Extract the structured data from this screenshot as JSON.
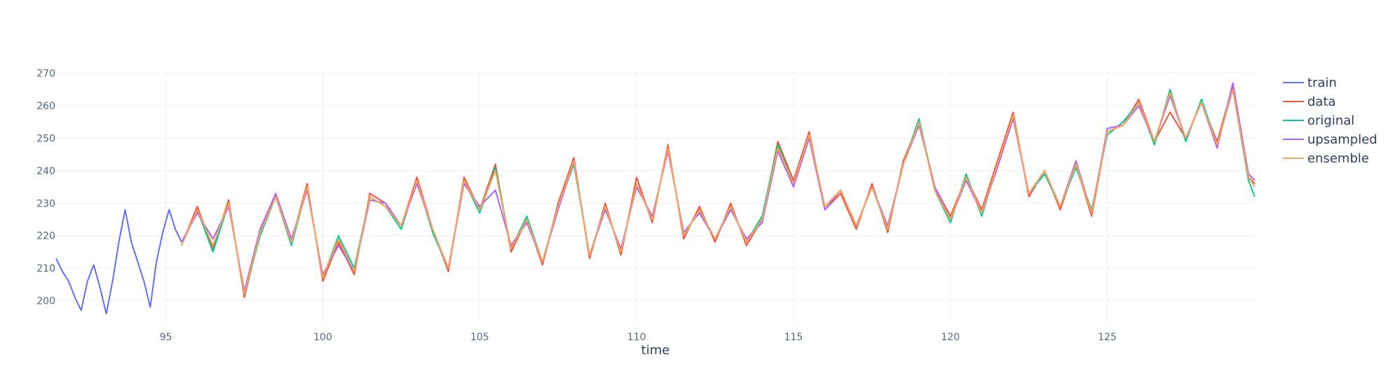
{
  "chart_data": {
    "type": "line",
    "title": "",
    "xlabel": "time",
    "ylabel": "",
    "xlim": [
      91.5,
      129.7
    ],
    "ylim": [
      193,
      271
    ],
    "xticks": [
      95,
      100,
      105,
      110,
      115,
      120,
      125
    ],
    "yticks": [
      200,
      210,
      220,
      230,
      240,
      250,
      260,
      270
    ],
    "grid": true,
    "legend_position": "top-right",
    "series": [
      {
        "name": "train",
        "color": "#636efa",
        "x": [
          91.5,
          91.7,
          91.9,
          92.1,
          92.3,
          92.5,
          92.7,
          92.9,
          93.1,
          93.3,
          93.5,
          93.7,
          93.9,
          94.1,
          94.3,
          94.5,
          94.7,
          94.9,
          95.1,
          95.3,
          95.5
        ],
        "y": [
          213,
          209,
          206,
          201,
          197,
          206,
          211,
          204,
          196,
          206,
          218,
          228,
          218,
          212,
          206,
          198,
          212,
          221,
          228,
          222,
          218
        ]
      },
      {
        "name": "data",
        "color": "#ef553b",
        "x": [
          95.5,
          96.0,
          96.5,
          97.0,
          97.5,
          98.0,
          98.5,
          99.0,
          99.5,
          100.0,
          100.5,
          101.0,
          101.5,
          102.0,
          102.5,
          103.0,
          103.5,
          104.0,
          104.5,
          105.0,
          105.5,
          106.0,
          106.5,
          107.0,
          107.5,
          108.0,
          108.5,
          109.0,
          109.5,
          110.0,
          110.5,
          111.0,
          111.5,
          112.0,
          112.5,
          113.0,
          113.5,
          114.0,
          114.5,
          115.0,
          115.5,
          116.0,
          116.5,
          117.0,
          117.5,
          118.0,
          118.5,
          119.0,
          119.5,
          120.0,
          120.5,
          121.0,
          121.5,
          122.0,
          122.5,
          123.0,
          123.5,
          124.0,
          124.5,
          125.0,
          125.5,
          126.0,
          126.5,
          127.0,
          127.5,
          128.0,
          128.5,
          129.0,
          129.5,
          129.7
        ],
        "y": [
          217,
          229,
          216,
          231,
          201,
          221,
          233,
          218,
          236,
          206,
          218,
          208,
          233,
          230,
          223,
          238,
          222,
          209,
          238,
          228,
          242,
          215,
          225,
          211,
          230,
          244,
          213,
          230,
          214,
          238,
          224,
          248,
          219,
          229,
          218,
          230,
          217,
          225,
          249,
          237,
          252,
          228,
          233,
          222,
          236,
          221,
          243,
          255,
          235,
          226,
          238,
          228,
          243,
          258,
          232,
          240,
          228,
          242,
          226,
          252,
          254,
          262,
          249,
          258,
          250,
          261,
          249,
          266,
          238,
          236
        ]
      },
      {
        "name": "original",
        "color": "#00cc96",
        "x": [
          95.5,
          96.0,
          96.5,
          97.0,
          97.5,
          98.0,
          98.5,
          99.0,
          99.5,
          100.0,
          100.5,
          101.0,
          101.5,
          102.0,
          102.5,
          103.0,
          103.5,
          104.0,
          104.5,
          105.0,
          105.5,
          106.0,
          106.5,
          107.0,
          107.5,
          108.0,
          108.5,
          109.0,
          109.5,
          110.0,
          110.5,
          111.0,
          111.5,
          112.0,
          112.5,
          113.0,
          113.5,
          114.0,
          114.5,
          115.0,
          115.5,
          116.0,
          116.5,
          117.0,
          117.5,
          118.0,
          118.5,
          119.0,
          119.5,
          120.0,
          120.5,
          121.0,
          121.5,
          122.0,
          122.5,
          123.0,
          123.5,
          124.0,
          124.5,
          125.0,
          125.5,
          126.0,
          126.5,
          127.0,
          127.5,
          128.0,
          128.5,
          129.0,
          129.5,
          129.7
        ],
        "y": [
          217,
          228,
          215,
          230,
          202,
          220,
          232,
          217,
          235,
          207,
          220,
          210,
          232,
          229,
          222,
          237,
          221,
          210,
          237,
          227,
          241,
          216,
          226,
          212,
          229,
          242,
          214,
          229,
          215,
          236,
          225,
          247,
          220,
          228,
          219,
          229,
          218,
          226,
          248,
          236,
          251,
          229,
          234,
          223,
          235,
          222,
          242,
          256,
          234,
          224,
          239,
          226,
          242,
          257,
          233,
          239,
          229,
          241,
          228,
          251,
          255,
          261,
          248,
          265,
          249,
          262,
          248,
          265,
          237,
          232
        ]
      },
      {
        "name": "upsampled",
        "color": "#ab63fa",
        "x": [
          95.5,
          96.0,
          96.5,
          97.0,
          97.5,
          98.0,
          98.5,
          99.0,
          99.5,
          100.0,
          100.5,
          101.0,
          101.5,
          102.0,
          102.5,
          103.0,
          103.5,
          104.0,
          104.5,
          105.0,
          105.5,
          106.0,
          106.5,
          107.0,
          107.5,
          108.0,
          108.5,
          109.0,
          109.5,
          110.0,
          110.5,
          111.0,
          111.5,
          112.0,
          112.5,
          113.0,
          113.5,
          114.0,
          114.5,
          115.0,
          115.5,
          116.0,
          116.5,
          117.0,
          117.5,
          118.0,
          118.5,
          119.0,
          119.5,
          120.0,
          120.5,
          121.0,
          121.5,
          122.0,
          122.5,
          123.0,
          123.5,
          124.0,
          124.5,
          125.0,
          125.5,
          126.0,
          126.5,
          127.0,
          127.5,
          128.0,
          128.5,
          129.0,
          129.5,
          129.7
        ],
        "y": [
          218,
          227,
          219,
          229,
          203,
          222,
          233,
          219,
          234,
          208,
          217,
          209,
          231,
          230,
          223,
          236,
          222,
          210,
          236,
          229,
          234,
          217,
          224,
          212,
          228,
          243,
          214,
          228,
          216,
          235,
          226,
          246,
          221,
          227,
          219,
          228,
          219,
          224,
          246,
          235,
          250,
          228,
          234,
          223,
          235,
          223,
          242,
          254,
          235,
          225,
          237,
          227,
          241,
          256,
          233,
          240,
          229,
          243,
          227,
          253,
          254,
          260,
          249,
          263,
          250,
          261,
          247,
          267,
          239,
          237
        ]
      },
      {
        "name": "ensemble",
        "color": "#ffa15a",
        "x": [
          95.5,
          96.0,
          96.5,
          97.0,
          97.5,
          98.0,
          98.5,
          99.0,
          99.5,
          100.0,
          100.5,
          101.0,
          101.5,
          102.0,
          102.5,
          103.0,
          103.5,
          104.0,
          104.5,
          105.0,
          105.5,
          106.0,
          106.5,
          107.0,
          107.5,
          108.0,
          108.5,
          109.0,
          109.5,
          110.0,
          110.5,
          111.0,
          111.5,
          112.0,
          112.5,
          113.0,
          113.5,
          114.0,
          114.5,
          115.0,
          115.5,
          116.0,
          116.5,
          117.0,
          117.5,
          118.0,
          118.5,
          119.0,
          119.5,
          120.0,
          120.5,
          121.0,
          121.5,
          122.0,
          122.5,
          123.0,
          123.5,
          124.0,
          124.5,
          125.0,
          125.5,
          126.0,
          126.5,
          127.0,
          127.5,
          128.0,
          128.5,
          129.0,
          129.5,
          129.7
        ],
        "y": [
          217,
          228,
          217,
          230,
          202,
          221,
          232,
          218,
          235,
          207,
          219,
          209,
          232,
          229,
          223,
          237,
          222,
          210,
          237,
          228,
          240,
          216,
          225,
          212,
          229,
          243,
          214,
          229,
          215,
          236,
          225,
          247,
          220,
          228,
          219,
          229,
          218,
          225,
          247,
          236,
          251,
          229,
          234,
          223,
          235,
          222,
          242,
          255,
          234,
          225,
          238,
          227,
          242,
          257,
          233,
          240,
          229,
          242,
          227,
          252,
          254,
          261,
          249,
          264,
          250,
          261,
          248,
          265,
          238,
          235
        ]
      }
    ]
  }
}
